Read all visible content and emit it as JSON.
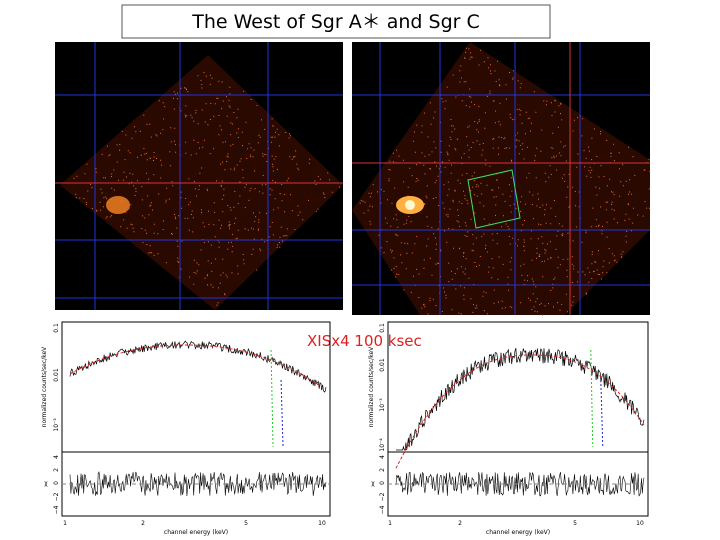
{
  "title": "The West of Sgr A＊ and Sgr C",
  "annotation": "XISx4 100 ksec",
  "spectra": [
    {
      "y_label": "normalized counts/sec/keV",
      "x_label": "channel energy (keV)",
      "residual_label": "χ",
      "x_ticks": [
        "1",
        "2",
        "5",
        "10"
      ],
      "y_ticks": [
        "0.1",
        "0.01",
        "10⁻³"
      ],
      "residual_ticks": [
        "4",
        "2",
        "0",
        "−2",
        "−4"
      ]
    },
    {
      "y_label": "normalized counts/sec/keV",
      "x_label": "channel energy (keV)",
      "residual_label": "χ",
      "x_ticks": [
        "1",
        "2",
        "5",
        "10"
      ],
      "y_ticks": [
        "0.1",
        "0.01",
        "10⁻³",
        "10⁻⁴"
      ],
      "residual_ticks": [
        "4",
        "2",
        "0",
        "−2",
        "−4"
      ]
    }
  ]
}
